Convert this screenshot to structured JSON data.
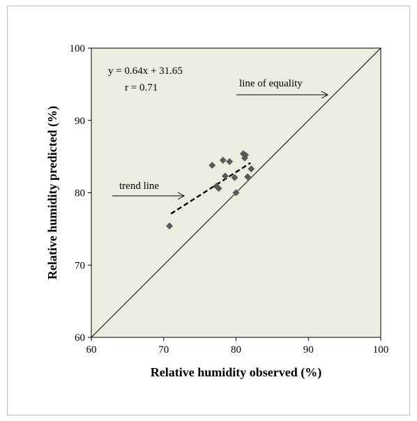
{
  "chart_data": {
    "type": "scatter",
    "title": "",
    "xlabel": "Relative humidity observed (%)",
    "ylabel": "Relative humidity predicted (%)",
    "xlim": [
      60,
      100
    ],
    "ylim": [
      60,
      100
    ],
    "x_ticks": [
      60,
      70,
      80,
      90,
      100
    ],
    "y_ticks": [
      60,
      70,
      80,
      90,
      100
    ],
    "grid": false,
    "plot_background": "#ebedde",
    "marker_color": "#595959",
    "series": [
      {
        "x": [
          70.8,
          76.7,
          77.3,
          77.6,
          78.2,
          78.5,
          79.1,
          79.8,
          80.0,
          81.0,
          81.2,
          81.3,
          81.6,
          82.1
        ],
        "y": [
          75.4,
          83.8,
          80.9,
          80.6,
          84.5,
          82.3,
          84.3,
          82.1,
          80.0,
          85.4,
          84.8,
          85.2,
          82.2,
          83.3
        ]
      }
    ],
    "trend_line": {
      "slope": 0.64,
      "intercept": 31.65,
      "x_range": [
        71,
        82
      ]
    },
    "equality_line": {
      "from": [
        60,
        60
      ],
      "to": [
        100,
        100
      ]
    },
    "annotations": {
      "equation": "y = 0.64x + 31.65",
      "r_value": "r = 0.71",
      "equality_label": "line of equality",
      "trend_label": "trend line"
    }
  }
}
